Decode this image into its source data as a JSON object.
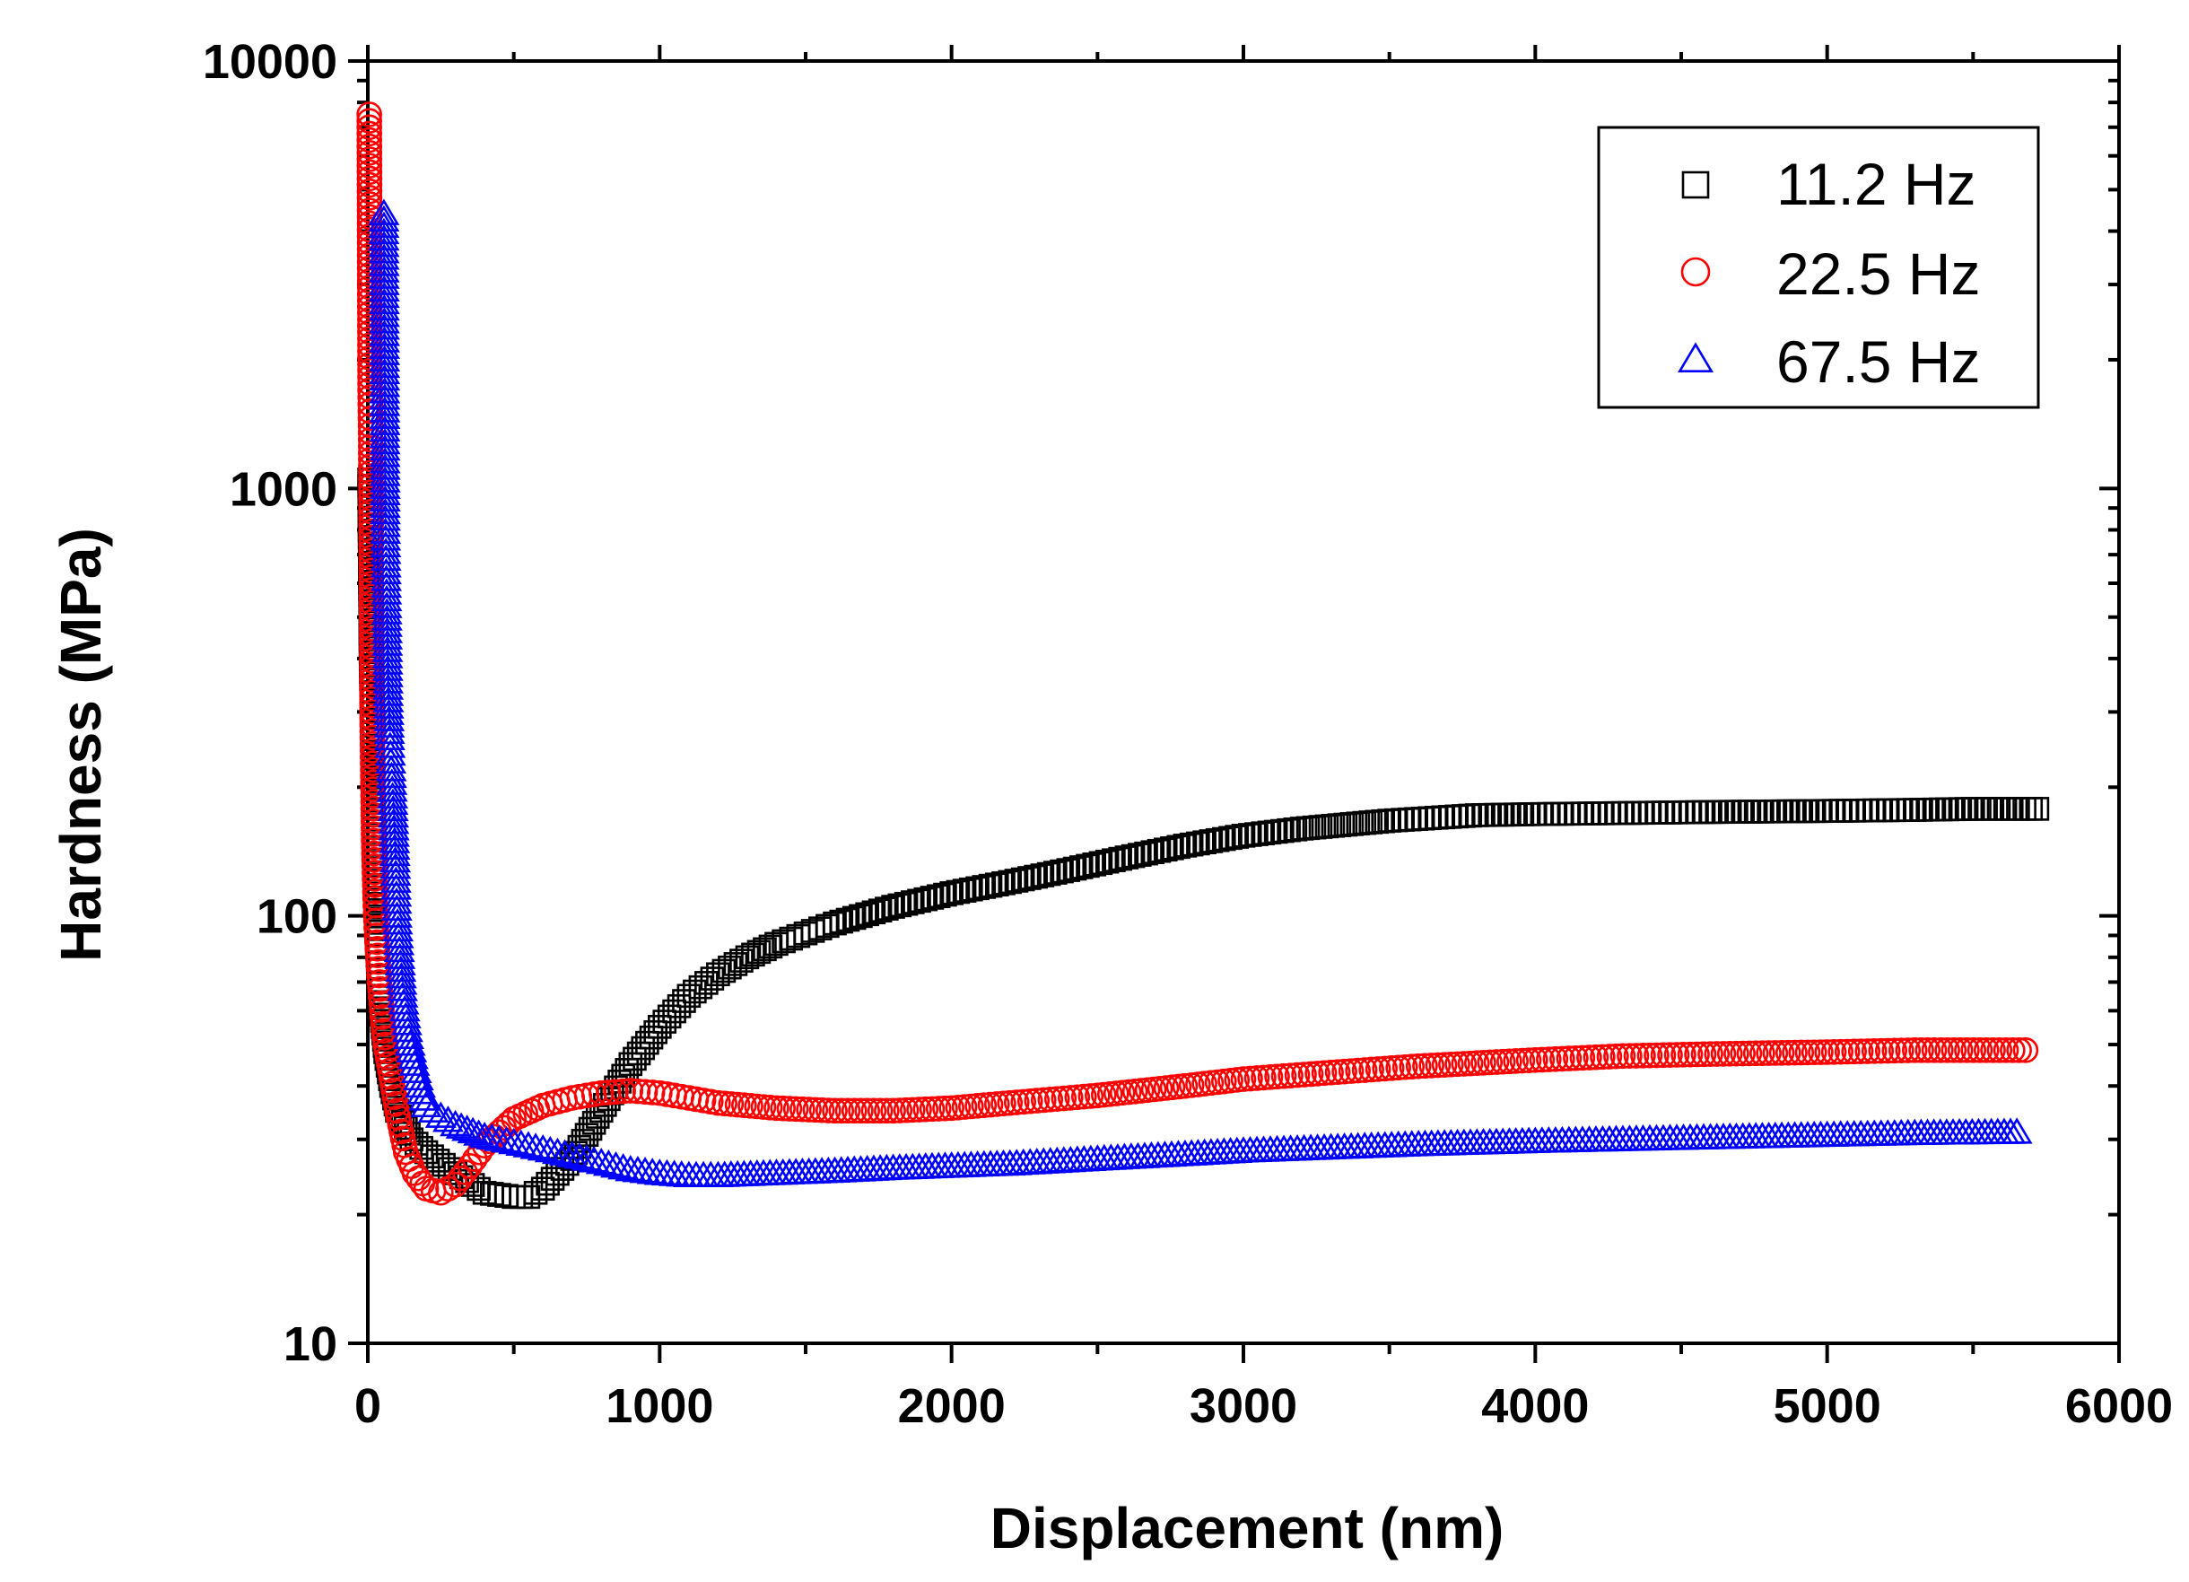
{
  "chart_data": {
    "type": "scatter",
    "title": "",
    "xlabel": "Displacement (nm)",
    "ylabel": "Hardness (MPa)",
    "xlim": [
      0,
      6000
    ],
    "ylim": [
      10,
      10000
    ],
    "yscale": "log",
    "x_ticks": [
      0,
      1000,
      2000,
      3000,
      4000,
      5000,
      6000
    ],
    "x_tick_labels": [
      "0",
      "1000",
      "2000",
      "3000",
      "4000",
      "5000",
      "6000"
    ],
    "y_ticks": [
      10,
      100,
      1000,
      10000
    ],
    "y_tick_labels": [
      "10",
      "100",
      "1000",
      "10000"
    ],
    "legend_position": "top-right",
    "series": [
      {
        "name": "11.2 Hz",
        "marker": "square",
        "color": "#000000",
        "x": [
          5,
          10,
          15,
          20,
          30,
          40,
          60,
          80,
          100,
          150,
          200,
          300,
          400,
          500,
          550,
          600,
          700,
          800,
          900,
          1000,
          1100,
          1200,
          1300,
          1400,
          1500,
          1600,
          1800,
          2000,
          2200,
          2400,
          2600,
          2800,
          3000,
          3200,
          3500,
          3800,
          4000,
          4300,
          4600,
          5000,
          5300,
          5500,
          5720
        ],
        "y": [
          1050,
          400,
          250,
          150,
          90,
          65,
          48,
          40,
          35,
          30,
          28,
          25,
          22.5,
          22,
          22,
          23,
          27,
          35,
          45,
          55,
          65,
          73,
          80,
          86,
          91,
          96,
          105,
          113,
          120,
          128,
          137,
          146,
          154,
          160,
          167,
          172,
          173,
          174,
          175,
          176,
          177,
          178,
          178
        ]
      },
      {
        "name": "22.5 Hz",
        "marker": "circle",
        "color": "#ff0000",
        "x": [
          5,
          8,
          10,
          12,
          15,
          20,
          25,
          30,
          40,
          50,
          60,
          80,
          100,
          130,
          160,
          200,
          250,
          300,
          350,
          400,
          500,
          600,
          700,
          800,
          900,
          1000,
          1100,
          1200,
          1400,
          1600,
          1800,
          2000,
          2200,
          2500,
          2800,
          3000,
          3300,
          3600,
          4000,
          4300,
          4600,
          5000,
          5300,
          5680
        ],
        "y": [
          7500,
          1700,
          1300,
          620,
          280,
          150,
          110,
          90,
          70,
          58,
          50,
          42,
          35,
          28,
          25,
          23,
          22.5,
          23.5,
          26,
          29,
          33.5,
          36,
          37.5,
          38.5,
          39,
          38.5,
          37.5,
          36.5,
          35.5,
          35,
          35,
          35.5,
          36.5,
          38,
          40,
          41.5,
          43,
          44.5,
          46,
          47,
          47.5,
          48,
          48.5,
          48.5
        ]
      },
      {
        "name": "67.5 Hz",
        "marker": "triangle",
        "color": "#0000ff",
        "x": [
          55,
          60,
          65,
          70,
          75,
          80,
          85,
          90,
          95,
          100,
          110,
          120,
          140,
          160,
          180,
          200,
          250,
          300,
          400,
          500,
          600,
          700,
          800,
          900,
          1000,
          1100,
          1200,
          1400,
          1600,
          1800,
          2000,
          2200,
          2500,
          2800,
          3000,
          3300,
          3600,
          4000,
          4300,
          4600,
          5000,
          5300,
          5650
        ],
        "y": [
          4400,
          820,
          530,
          330,
          260,
          220,
          190,
          160,
          130,
          100,
          80,
          65,
          52,
          45,
          40,
          36,
          34,
          32.5,
          30.5,
          29.5,
          28.5,
          27.5,
          26.5,
          25.5,
          25,
          24.7,
          24.7,
          25,
          25.3,
          25.7,
          26,
          26.3,
          27,
          27.7,
          28.2,
          28.7,
          29.2,
          29.7,
          30,
          30.3,
          30.7,
          31,
          31.2
        ]
      }
    ]
  }
}
